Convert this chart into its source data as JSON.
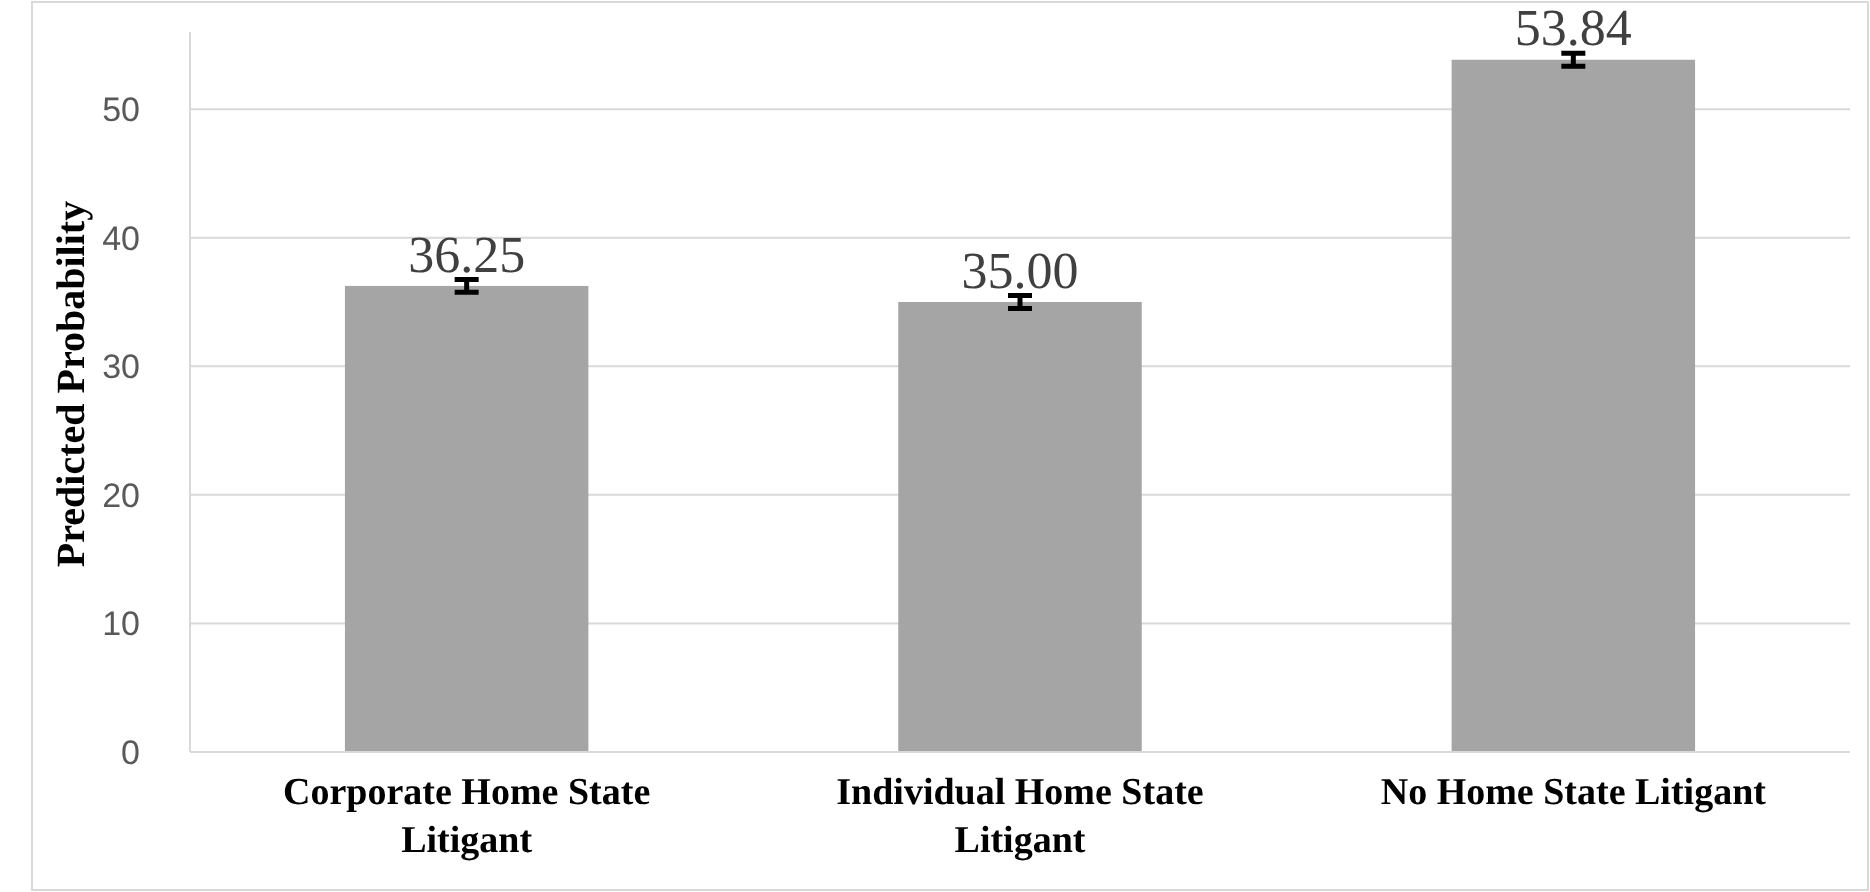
{
  "chart_data": {
    "type": "bar",
    "ylabel": "Predicted Probability",
    "categories": [
      "Corporate Home State Litigant",
      "Individual Home State Litigant",
      "No Home State Litigant"
    ],
    "values": [
      36.25,
      35.0,
      53.84
    ],
    "errors": [
      0.5,
      0.5,
      0.5
    ],
    "color": "#a5a5a5",
    "value_labels": [
      "36.25",
      "35.00",
      "53.84"
    ],
    "ylim": [
      0,
      56
    ],
    "yticks": [
      0,
      10,
      20,
      30,
      40,
      50
    ],
    "grid": "y"
  }
}
